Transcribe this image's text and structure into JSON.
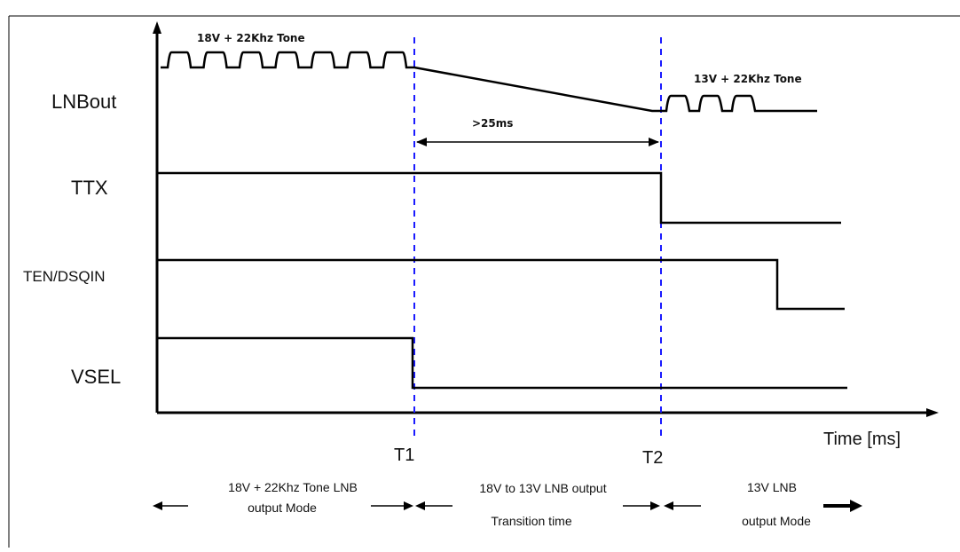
{
  "title": "",
  "signals": {
    "lnbout": "LNBout",
    "ttx": "TTX",
    "ten": "TEN/DSQIN",
    "vsel": "VSEL"
  },
  "annotations": {
    "tone18": "18V + 22Khz Tone",
    "tone13": "13V + 22Khz Tone",
    "interval": ">25ms"
  },
  "axis": {
    "x_label": "Time [ms]",
    "t1": "T1",
    "t2": "T2"
  },
  "phases": [
    {
      "line1": "18V + 22Khz Tone LNB",
      "line2": "output Mode"
    },
    {
      "line1": "18V to 13V LNB output",
      "line2": "Transition time"
    },
    {
      "line1": "13V LNB",
      "line2": "output Mode"
    }
  ],
  "colors": {
    "marker": "#1a1aff",
    "signal": "#000000"
  }
}
